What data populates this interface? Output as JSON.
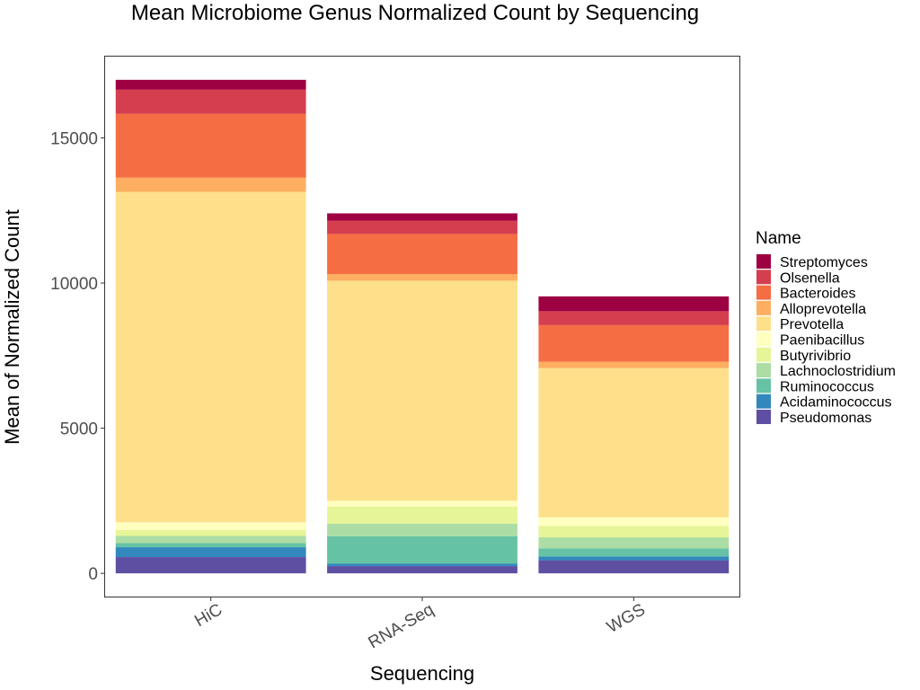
{
  "chart_data": {
    "type": "stacked-bar",
    "title": "Mean Microbiome Genus Normalized Count by Sequencing",
    "xlabel": "Sequencing",
    "ylabel": "Mean of Normalized Count",
    "categories": [
      "HiC",
      "RNA-Seq",
      "WGS"
    ],
    "ylim": [
      -800,
      17800
    ],
    "yticks": [
      0,
      5000,
      10000,
      15000
    ],
    "ytick_labels": [
      "0",
      "5000",
      "10000",
      "15000"
    ],
    "legend_title": "Name",
    "legend_position": "right",
    "grid": false,
    "series": [
      {
        "name": "Pseudomonas",
        "color": "#5E4FA2",
        "values": [
          560,
          250,
          450
        ]
      },
      {
        "name": "Acidaminococcus",
        "color": "#3288BD",
        "values": [
          340,
          80,
          130
        ]
      },
      {
        "name": "Ruminococcus",
        "color": "#66C2A5",
        "values": [
          140,
          950,
          280
        ]
      },
      {
        "name": "Lachnoclostridium",
        "color": "#ABDDA4",
        "values": [
          250,
          430,
          380
        ]
      },
      {
        "name": "Butyrivibrio",
        "color": "#E6F598",
        "values": [
          200,
          590,
          390
        ]
      },
      {
        "name": "Paenibacillus",
        "color": "#FFFFBF",
        "values": [
          270,
          200,
          300
        ]
      },
      {
        "name": "Prevotella",
        "color": "#FEE08B",
        "values": [
          11380,
          7580,
          5140
        ]
      },
      {
        "name": "Alloprevotella",
        "color": "#FDAE61",
        "values": [
          490,
          230,
          220
        ]
      },
      {
        "name": "Bacteroides",
        "color": "#F46D43",
        "values": [
          2200,
          1380,
          1260
        ]
      },
      {
        "name": "Olsenella",
        "color": "#D53E4F",
        "values": [
          830,
          460,
          480
        ]
      },
      {
        "name": "Streptomyces",
        "color": "#9E0142",
        "values": [
          340,
          250,
          510
        ]
      }
    ]
  }
}
